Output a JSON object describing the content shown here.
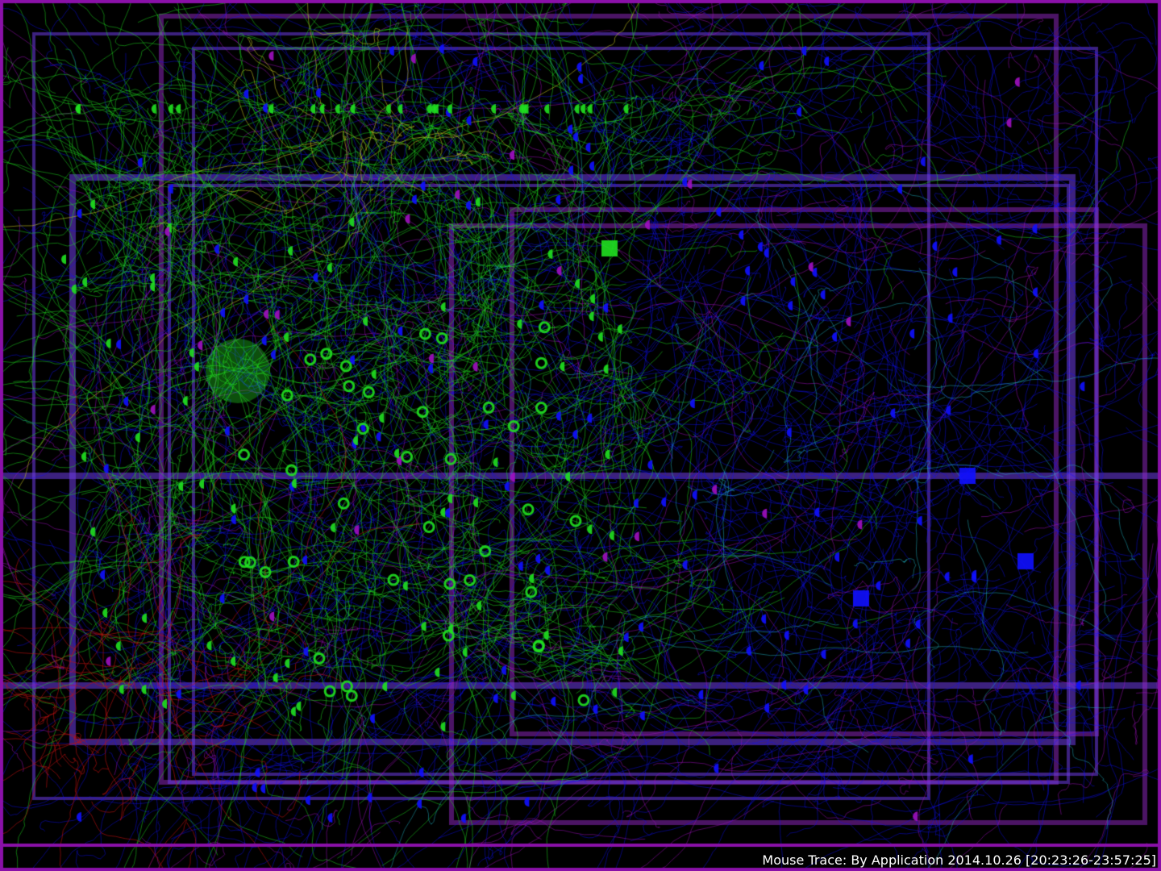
{
  "caption": "Mouse Trace: By Application 2014.10.26 [20:23:26-23:57:25]",
  "colors": {
    "background": "#000000",
    "frame": "#8a10a8",
    "applications": [
      "#1010ff",
      "#20e020",
      "#a010c0",
      "#c01010",
      "#20b0c0",
      "#c0c020"
    ]
  }
}
